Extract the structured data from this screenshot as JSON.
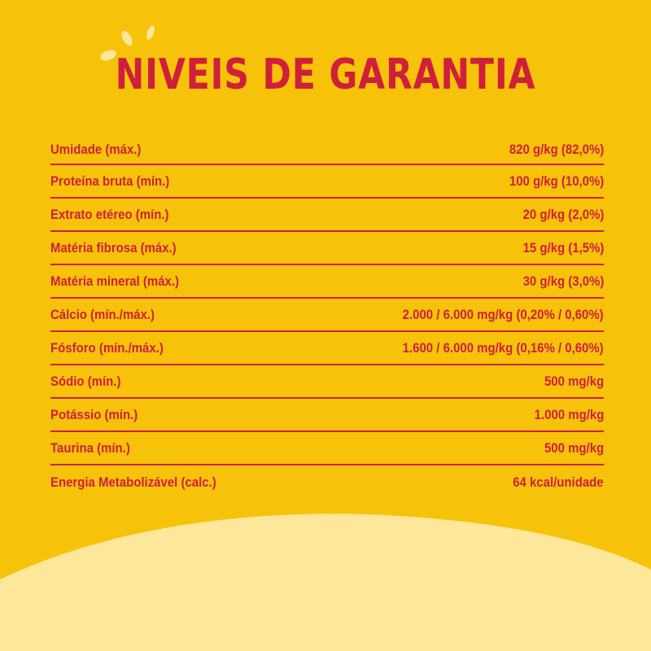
{
  "title": "NIVEIS DE GARANTIA",
  "colors": {
    "background": "#f7c20a",
    "accent_text": "#cf1f3a",
    "bottom_curve": "#fde79a"
  },
  "rows": [
    {
      "label": "Umidade (máx.)",
      "value": "820 g/kg (82,0%)"
    },
    {
      "label": "Proteína bruta (mín.)",
      "value": "100 g/kg (10,0%)"
    },
    {
      "label": "Extrato etéreo (mín.)",
      "value": "20 g/kg (2,0%)"
    },
    {
      "label": "Matéria fibrosa (máx.)",
      "value": "15 g/kg (1,5%)"
    },
    {
      "label": "Matéria mineral (máx.)",
      "value": "30 g/kg (3,0%)"
    },
    {
      "label": "Cálcio (mín./máx.)",
      "value": "2.000 / 6.000 mg/kg (0,20% / 0,60%)"
    },
    {
      "label": "Fósforo (mín./máx.)",
      "value": "1.600 / 6.000 mg/kg (0,16% / 0,60%)"
    },
    {
      "label": "Sódio (mín.)",
      "value": "500 mg/kg"
    },
    {
      "label": "Potássio (mín.)",
      "value": "1.000 mg/kg"
    },
    {
      "label": "Taurina (mín.)",
      "value": "500 mg/kg"
    },
    {
      "label": "Energia Metabolizável (calc.)",
      "value": "64 kcal/unidade"
    }
  ]
}
